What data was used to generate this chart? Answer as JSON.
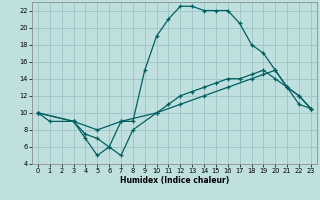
{
  "bg_color": "#c0e0e0",
  "grid_color": "#a0c8c8",
  "line_color": "#006060",
  "xlabel": "Humidex (Indice chaleur)",
  "xlim": [
    -0.5,
    23.5
  ],
  "ylim": [
    4,
    23
  ],
  "yticks": [
    4,
    6,
    8,
    10,
    12,
    14,
    16,
    18,
    20,
    22
  ],
  "xticks": [
    0,
    1,
    2,
    3,
    4,
    5,
    6,
    7,
    8,
    9,
    10,
    11,
    12,
    13,
    14,
    15,
    16,
    17,
    18,
    19,
    20,
    21,
    22,
    23
  ],
  "line1_x": [
    0,
    1,
    3,
    4,
    5,
    6,
    7,
    8,
    9,
    10,
    11,
    12,
    13,
    14,
    15,
    16,
    17,
    18,
    19,
    20,
    21,
    22,
    23
  ],
  "line1_y": [
    10,
    9,
    9,
    7,
    5,
    6,
    9,
    9,
    15,
    19,
    21,
    22.5,
    22.5,
    22,
    22,
    22,
    20.5,
    18,
    17,
    15,
    13,
    11,
    10.5
  ],
  "line2_x": [
    0,
    3,
    4,
    5,
    6,
    7,
    8,
    10,
    11,
    12,
    13,
    14,
    15,
    16,
    17,
    18,
    19,
    20,
    21,
    22,
    23
  ],
  "line2_y": [
    10,
    9,
    7.5,
    7,
    6,
    5,
    8,
    10,
    11,
    12,
    12.5,
    13,
    13.5,
    14,
    14,
    14.5,
    15,
    14,
    13,
    12,
    10.5
  ],
  "line3_x": [
    0,
    3,
    5,
    7,
    10,
    12,
    14,
    16,
    18,
    19,
    20,
    21,
    22,
    23
  ],
  "line3_y": [
    10,
    9,
    8,
    9,
    10,
    11,
    12,
    13,
    14,
    14.5,
    15,
    13,
    12,
    10.5
  ]
}
